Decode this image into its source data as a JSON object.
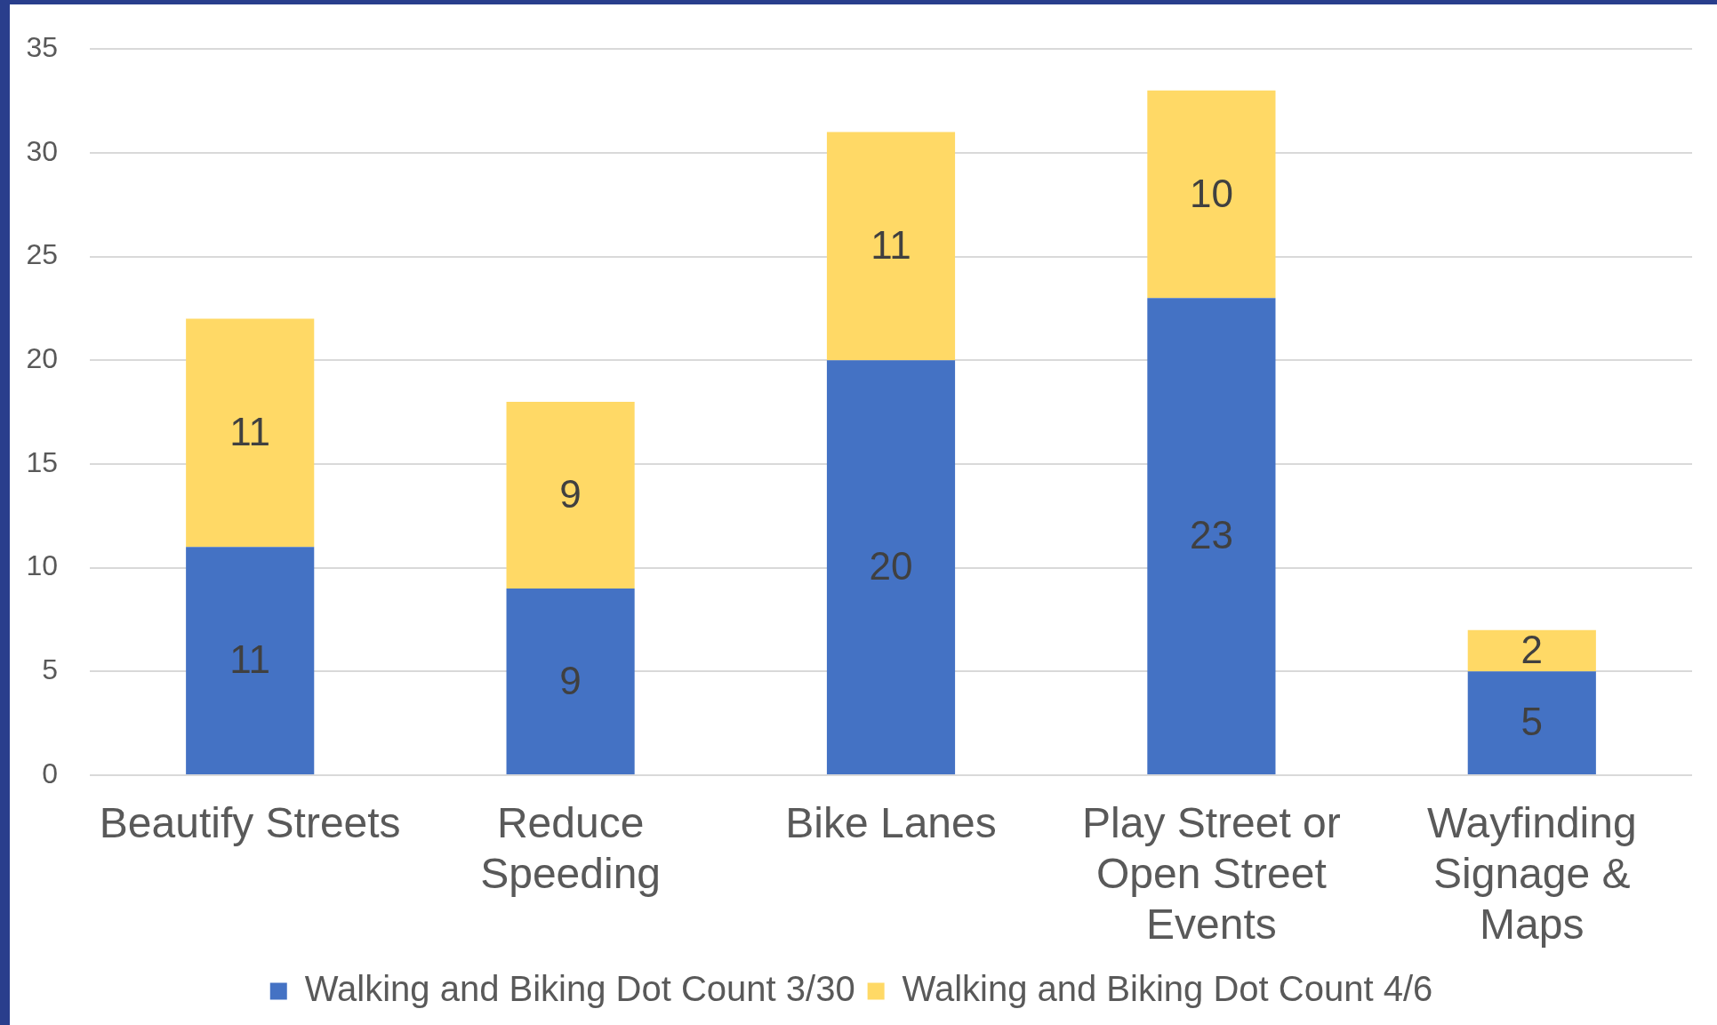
{
  "chart_data": {
    "type": "bar",
    "stacked": true,
    "categories": [
      "Beautify Streets",
      "Reduce Speeding",
      "Bike Lanes",
      "Play Street or Open Street Events",
      "Wayfinding Signage & Maps"
    ],
    "series": [
      {
        "name": "Walking and Biking Dot Count 3/30",
        "color": "#4472c4",
        "values": [
          11,
          9,
          20,
          23,
          5
        ]
      },
      {
        "name": "Walking and Biking Dot Count 4/6",
        "color": "#ffd966",
        "values": [
          11,
          9,
          11,
          10,
          2
        ]
      }
    ],
    "ylim": [
      0,
      35
    ],
    "yticks": [
      0,
      5,
      10,
      15,
      20,
      25,
      30,
      35
    ],
    "grid": "y",
    "legend": "bottom",
    "data_labels": true
  }
}
